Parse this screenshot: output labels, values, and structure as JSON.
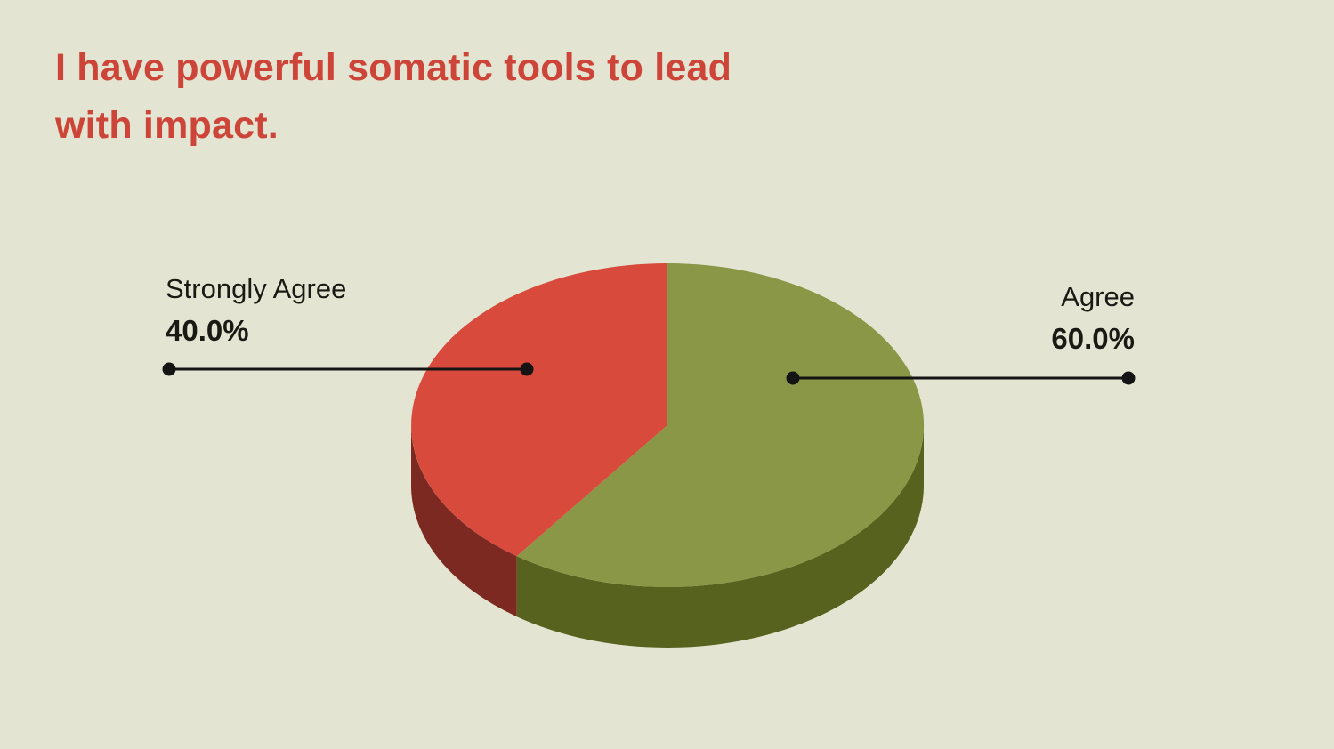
{
  "page": {
    "background_color": "#e3e4d2"
  },
  "title": {
    "text": "I have powerful somatic tools to lead with impact.",
    "color": "#cd4438"
  },
  "chart_data": {
    "type": "pie",
    "style": "3d",
    "title": "I have powerful somatic tools to lead with impact.",
    "start_angle_deg": 90,
    "direction": "counterclockwise",
    "legend_position": "callouts",
    "leader_line_color": "#141414",
    "slices": [
      {
        "label": "Strongly Agree",
        "value": 40.0,
        "display_value": "40.0%",
        "color": "#d84a3c",
        "side_color": "#7c2a21"
      },
      {
        "label": "Agree",
        "value": 60.0,
        "display_value": "60.0%",
        "color": "#8a9746",
        "side_color": "#57621e"
      }
    ]
  }
}
